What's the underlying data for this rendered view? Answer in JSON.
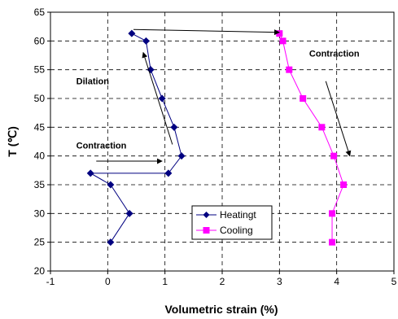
{
  "chart_data": {
    "type": "line",
    "xlabel": "Volumetric strain (%)",
    "ylabel": "T (℃)",
    "xlim": [
      -1,
      5
    ],
    "ylim": [
      20,
      65
    ],
    "x_ticks": [
      -1,
      0,
      1,
      2,
      3,
      4,
      5
    ],
    "y_ticks": [
      20,
      25,
      30,
      35,
      40,
      45,
      50,
      55,
      60,
      65
    ],
    "grid": "dashed",
    "legend_position": "lower-center",
    "series": [
      {
        "name": "Heatingt",
        "color": "#000080",
        "marker": "diamond",
        "points": [
          {
            "x": 0.05,
            "y": 25
          },
          {
            "x": 0.38,
            "y": 30
          },
          {
            "x": 0.05,
            "y": 35
          },
          {
            "x": -0.3,
            "y": 37
          },
          {
            "x": 1.06,
            "y": 37
          },
          {
            "x": 1.29,
            "y": 40
          },
          {
            "x": 1.16,
            "y": 45
          },
          {
            "x": 0.95,
            "y": 50
          },
          {
            "x": 0.75,
            "y": 55
          },
          {
            "x": 0.67,
            "y": 60
          },
          {
            "x": 0.42,
            "y": 61.3
          }
        ]
      },
      {
        "name": "Cooling",
        "color": "#ff00ff",
        "marker": "square",
        "points": [
          {
            "x": 3.0,
            "y": 61.3
          },
          {
            "x": 3.06,
            "y": 60
          },
          {
            "x": 3.17,
            "y": 55
          },
          {
            "x": 3.41,
            "y": 50
          },
          {
            "x": 3.74,
            "y": 45
          },
          {
            "x": 3.95,
            "y": 40
          },
          {
            "x": 4.12,
            "y": 35
          },
          {
            "x": 3.92,
            "y": 30
          },
          {
            "x": 3.92,
            "y": 25
          }
        ]
      }
    ],
    "annotations": [
      {
        "text": "Dilation",
        "x": -0.55,
        "y": 52.5
      },
      {
        "text": "Contraction",
        "x": -0.55,
        "y": 41.3
      },
      {
        "text": "Contraction",
        "x": 3.52,
        "y": 57.3
      }
    ],
    "arrows": [
      {
        "from": {
          "x": 0.45,
          "y": 62.0
        },
        "to": {
          "x": 3.0,
          "y": 61.5
        }
      },
      {
        "from": {
          "x": -0.2,
          "y": 39.1
        },
        "to": {
          "x": 0.95,
          "y": 39.1
        }
      },
      {
        "from": {
          "x": 1.13,
          "y": 42.0
        },
        "to": {
          "x": 0.62,
          "y": 58.0
        }
      },
      {
        "from": {
          "x": 3.81,
          "y": 53.0
        },
        "to": {
          "x": 4.23,
          "y": 40.0
        }
      }
    ]
  }
}
